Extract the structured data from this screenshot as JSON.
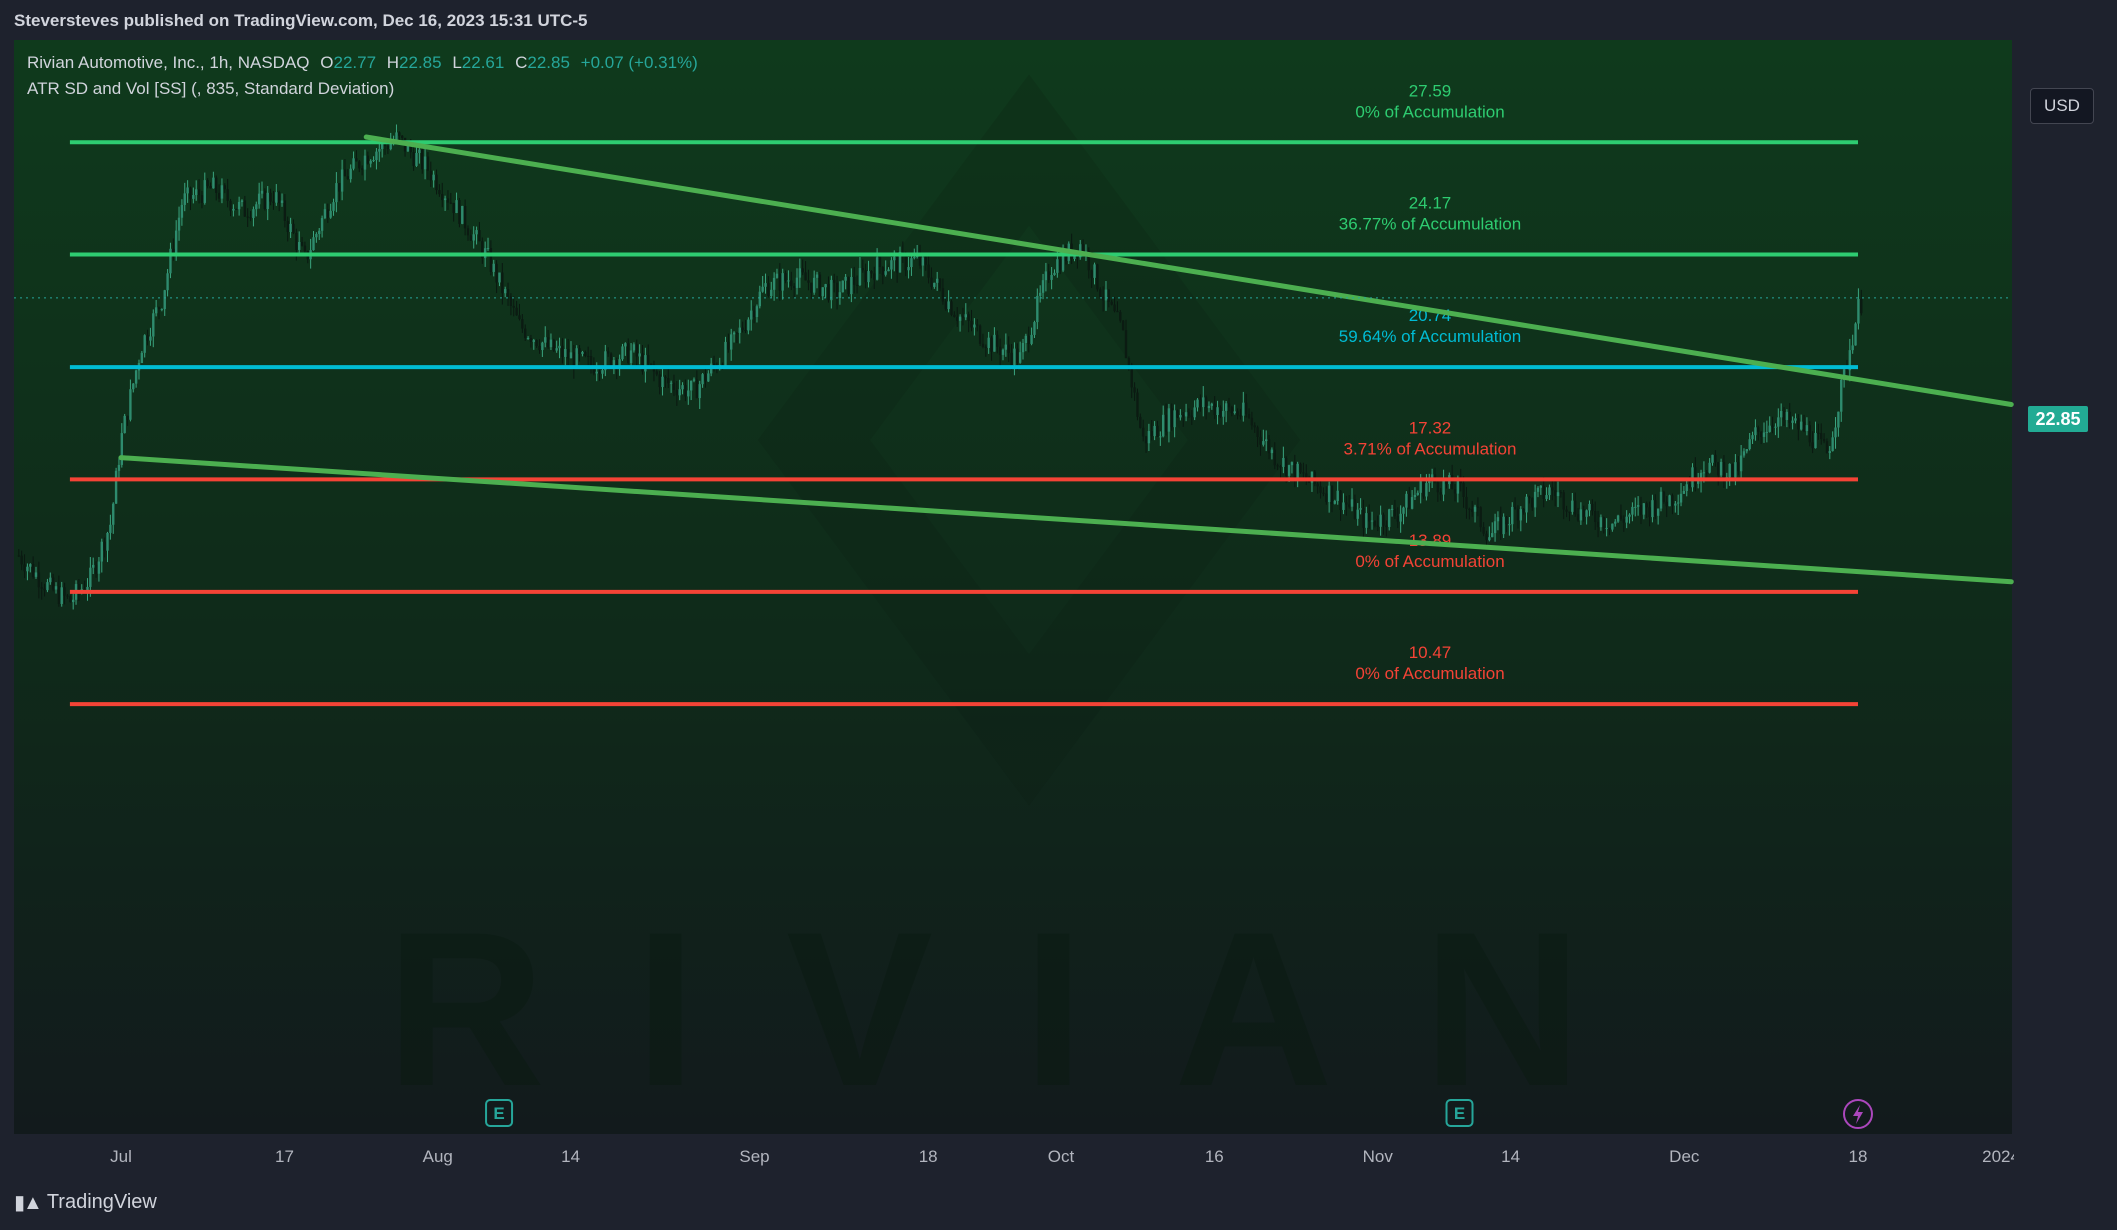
{
  "header": {
    "published": "Steversteves published on TradingView.com, Dec 16, 2023 15:31 UTC-5"
  },
  "legend": {
    "symbol": "Rivian Automotive, Inc., 1h, NASDAQ",
    "o_label": "O",
    "o": "22.77",
    "h_label": "H",
    "h": "22.85",
    "l_label": "L",
    "l": "22.61",
    "c_label": "C",
    "c": "22.85",
    "change": "+0.07 (+0.31%)",
    "indicator": "ATR SD and Vol [SS] (, 835, Standard Deviation)"
  },
  "currency_button": "USD",
  "current_price": "22.85",
  "watermark": "RIVIAN",
  "footer": {
    "brand": "TradingView"
  },
  "chart_data": {
    "type": "candlestick",
    "y_axis_ticks": [
      "29.00",
      "28.00",
      "27.00",
      "26.00",
      "25.00",
      "24.00",
      "23.00",
      "22.00",
      "21.00",
      "20.00",
      "19.00",
      "18.00",
      "17.00",
      "16.00",
      "15.00",
      "14.00",
      "13.00",
      "12.00",
      "11.00",
      "10.00",
      "9.00",
      "8.00",
      "7.00"
    ],
    "ylim": [
      6.5,
      29.5
    ],
    "x_axis_ticks": [
      {
        "label": "Jul",
        "day": 0
      },
      {
        "label": "17",
        "day": 16
      },
      {
        "label": "Aug",
        "day": 31
      },
      {
        "label": "14",
        "day": 44
      },
      {
        "label": "Sep",
        "day": 62
      },
      {
        "label": "18",
        "day": 79
      },
      {
        "label": "Oct",
        "day": 92
      },
      {
        "label": "16",
        "day": 107
      },
      {
        "label": "Nov",
        "day": 123
      },
      {
        "label": "14",
        "day": 136
      },
      {
        "label": "Dec",
        "day": 153
      },
      {
        "label": "18",
        "day": 170
      },
      {
        "label": "2024",
        "day": 184
      }
    ],
    "xlim_days": [
      -10,
      185
    ],
    "levels": [
      {
        "price": 27.59,
        "label": "27.59",
        "pct": "0% of Accumulation",
        "color": "#2ecc71"
      },
      {
        "price": 24.17,
        "label": "24.17",
        "pct": "36.77% of Accumulation",
        "color": "#2ecc71"
      },
      {
        "price": 20.74,
        "label": "20.74",
        "pct": "59.64% of Accumulation",
        "color": "#00bcd4"
      },
      {
        "price": 17.32,
        "label": "17.32",
        "pct": "3.71% of Accumulation",
        "color": "#f44336"
      },
      {
        "price": 13.89,
        "label": "13.89",
        "pct": "0% of Accumulation",
        "color": "#f44336"
      },
      {
        "price": 10.47,
        "label": "10.47",
        "pct": "0% of Accumulation",
        "color": "#f44336"
      }
    ],
    "level_range_days": [
      -5,
      170
    ],
    "trendlines": [
      {
        "name": "upper-trendline",
        "from": {
          "day": 24,
          "price": 27.75
        },
        "to": {
          "day": 185,
          "price": 19.6
        }
      },
      {
        "name": "lower-trendline",
        "from": {
          "day": 0,
          "price": 17.98
        },
        "to": {
          "day": 185,
          "price": 14.2
        }
      }
    ],
    "price_path": [
      {
        "day": -10,
        "price": 15.0
      },
      {
        "day": -7,
        "price": 14.0
      },
      {
        "day": -5,
        "price": 13.6
      },
      {
        "day": -3,
        "price": 14.3
      },
      {
        "day": -1,
        "price": 16.0
      },
      {
        "day": 0,
        "price": 18.5
      },
      {
        "day": 2,
        "price": 21.4
      },
      {
        "day": 4,
        "price": 22.8
      },
      {
        "day": 6,
        "price": 25.8
      },
      {
        "day": 9,
        "price": 26.2
      },
      {
        "day": 12,
        "price": 25.5
      },
      {
        "day": 15,
        "price": 26.0
      },
      {
        "day": 18,
        "price": 24.0
      },
      {
        "day": 21,
        "price": 26.2
      },
      {
        "day": 24,
        "price": 27.2
      },
      {
        "day": 27,
        "price": 27.7
      },
      {
        "day": 30,
        "price": 26.8
      },
      {
        "day": 33,
        "price": 25.5
      },
      {
        "day": 36,
        "price": 24.0
      },
      {
        "day": 39,
        "price": 22.0
      },
      {
        "day": 42,
        "price": 21.3
      },
      {
        "day": 46,
        "price": 20.8
      },
      {
        "day": 50,
        "price": 21.2
      },
      {
        "day": 53,
        "price": 20.3
      },
      {
        "day": 56,
        "price": 20.0
      },
      {
        "day": 60,
        "price": 21.5
      },
      {
        "day": 63,
        "price": 23.2
      },
      {
        "day": 66,
        "price": 23.5
      },
      {
        "day": 70,
        "price": 23.0
      },
      {
        "day": 74,
        "price": 23.8
      },
      {
        "day": 78,
        "price": 24.0
      },
      {
        "day": 82,
        "price": 22.3
      },
      {
        "day": 85,
        "price": 21.5
      },
      {
        "day": 88,
        "price": 21.0
      },
      {
        "day": 91,
        "price": 23.8
      },
      {
        "day": 94,
        "price": 24.5
      },
      {
        "day": 96,
        "price": 23.0
      },
      {
        "day": 98,
        "price": 21.8
      },
      {
        "day": 100,
        "price": 18.5
      },
      {
        "day": 103,
        "price": 19.3
      },
      {
        "day": 106,
        "price": 19.6
      },
      {
        "day": 110,
        "price": 19.3
      },
      {
        "day": 113,
        "price": 18.0
      },
      {
        "day": 116,
        "price": 17.3
      },
      {
        "day": 119,
        "price": 16.8
      },
      {
        "day": 122,
        "price": 16.0
      },
      {
        "day": 125,
        "price": 16.3
      },
      {
        "day": 128,
        "price": 17.3
      },
      {
        "day": 131,
        "price": 17.0
      },
      {
        "day": 134,
        "price": 15.6
      },
      {
        "day": 137,
        "price": 16.5
      },
      {
        "day": 140,
        "price": 17.0
      },
      {
        "day": 143,
        "price": 16.3
      },
      {
        "day": 146,
        "price": 16.0
      },
      {
        "day": 149,
        "price": 16.4
      },
      {
        "day": 152,
        "price": 16.8
      },
      {
        "day": 155,
        "price": 17.8
      },
      {
        "day": 158,
        "price": 17.5
      },
      {
        "day": 160,
        "price": 18.7
      },
      {
        "day": 162,
        "price": 19.2
      },
      {
        "day": 165,
        "price": 18.8
      },
      {
        "day": 167,
        "price": 18.1
      },
      {
        "day": 168,
        "price": 19.5
      },
      {
        "day": 169,
        "price": 21.0
      },
      {
        "day": 170,
        "price": 22.5
      },
      {
        "day": 170.5,
        "price": 22.85
      }
    ],
    "earnings_markers": [
      {
        "day": 37,
        "label": "E"
      },
      {
        "day": 131,
        "label": "E"
      }
    ],
    "dividend_marker": {
      "day": 170
    }
  }
}
